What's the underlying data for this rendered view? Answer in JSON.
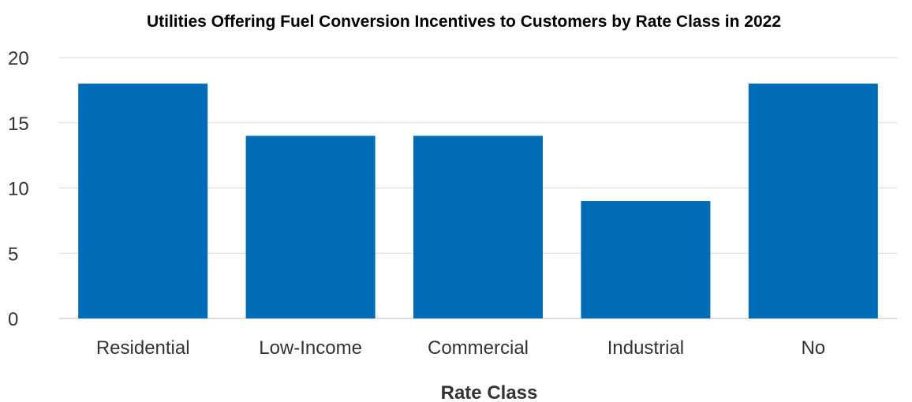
{
  "chart_data": {
    "type": "bar",
    "title": "Utilities Offering Fuel Conversion Incentives to Customers by Rate Class in 2022",
    "xlabel": "Rate Class",
    "ylabel": "",
    "categories": [
      "Residential",
      "Low-Income",
      "Commercial",
      "Industrial",
      "No"
    ],
    "values": [
      18,
      14,
      14,
      9,
      18
    ],
    "ylim": [
      0,
      20
    ],
    "yticks": [
      0,
      5,
      10,
      15,
      20
    ],
    "grid": true,
    "legend": "none",
    "bar_color": "#006cb5"
  }
}
